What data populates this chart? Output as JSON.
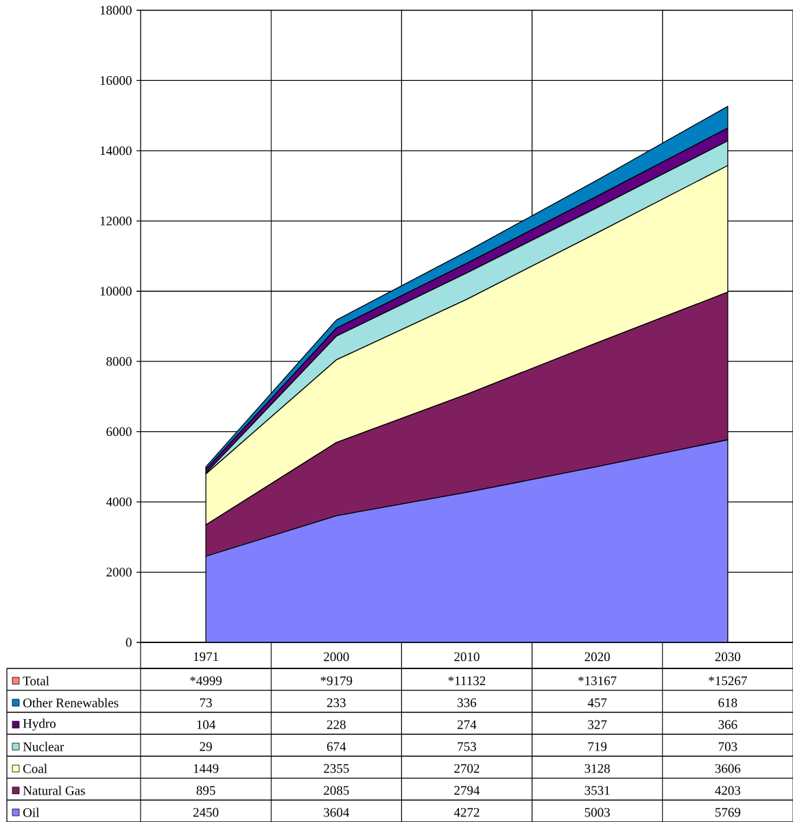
{
  "chart_data": {
    "type": "area",
    "stacked": true,
    "categories": [
      "1971",
      "2000",
      "2010",
      "2020",
      "2030"
    ],
    "series": [
      {
        "name": "Oil",
        "color": "#8080ff",
        "values": [
          2450,
          3604,
          4272,
          5003,
          5769
        ]
      },
      {
        "name": "Natural Gas",
        "color": "#7f1f5f",
        "values": [
          895,
          2085,
          2794,
          3531,
          4203
        ]
      },
      {
        "name": "Coal",
        "color": "#ffffc0",
        "values": [
          1449,
          2355,
          2702,
          3128,
          3606
        ]
      },
      {
        "name": "Nuclear",
        "color": "#a0e0e0",
        "values": [
          29,
          674,
          753,
          719,
          703
        ]
      },
      {
        "name": "Hydro",
        "color": "#600080",
        "values": [
          104,
          228,
          274,
          327,
          366
        ]
      },
      {
        "name": "Other Renewables",
        "color": "#0080c0",
        "values": [
          73,
          233,
          336,
          457,
          618
        ]
      }
    ],
    "annotations": [
      "Total",
      "*4999",
      "*9179",
      "*11132",
      "*13167",
      "*15267"
    ],
    "ylim": [
      0,
      18000
    ],
    "yticks": [
      0,
      2000,
      4000,
      6000,
      8000,
      10000,
      12000,
      14000,
      16000,
      18000
    ],
    "grid": true,
    "legend": "bottom",
    "data_labels": true
  }
}
